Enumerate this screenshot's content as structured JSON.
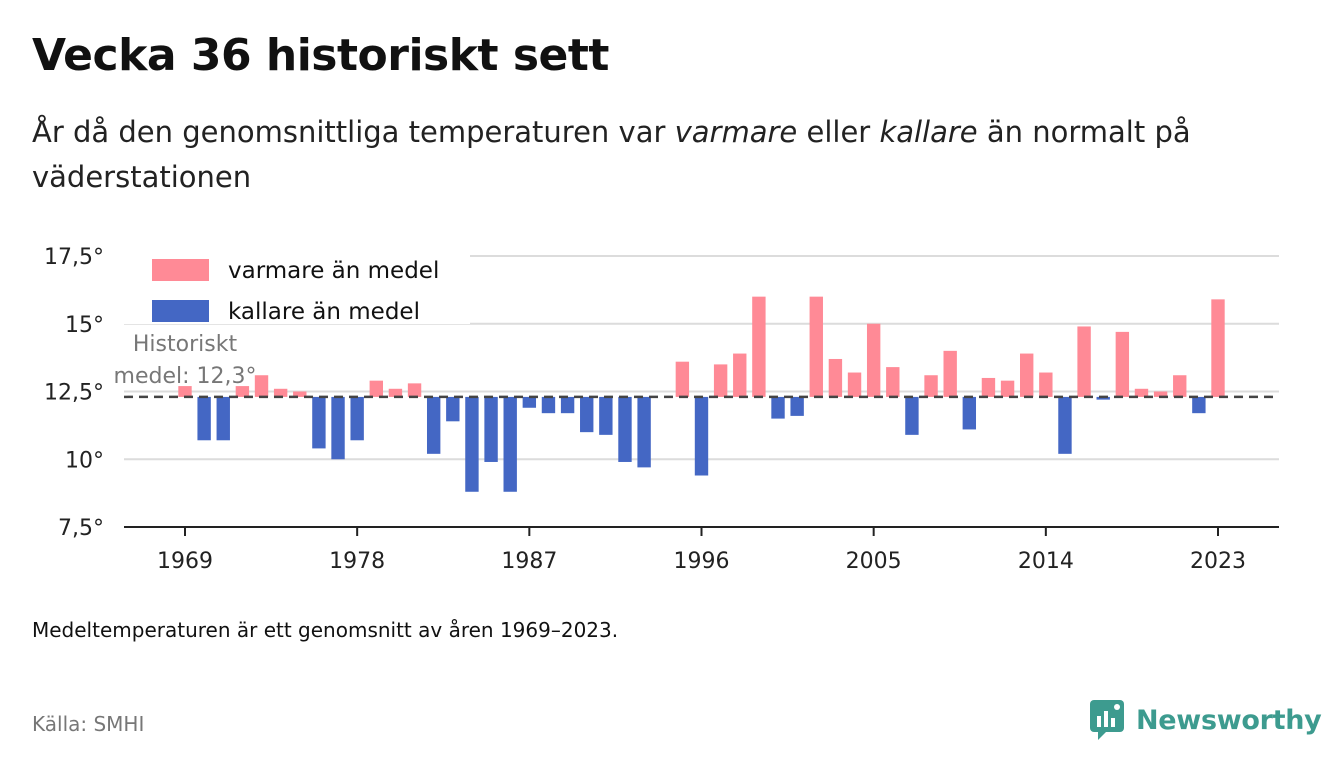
{
  "header": {
    "title": "Vecka 36 historiskt sett",
    "subtitle_parts": [
      "År då den genomsnittliga temperaturen var ",
      "varmare",
      " eller ",
      "kallare",
      " än normalt på väderstationen"
    ]
  },
  "chart_data": {
    "type": "bar",
    "title": "Vecka 36 historiskt sett",
    "x": [
      1969,
      1970,
      1971,
      1972,
      1973,
      1974,
      1975,
      1976,
      1977,
      1978,
      1979,
      1980,
      1981,
      1982,
      1983,
      1984,
      1985,
      1986,
      1987,
      1988,
      1989,
      1990,
      1991,
      1992,
      1993,
      1994,
      1995,
      1996,
      1997,
      1998,
      1999,
      2000,
      2001,
      2002,
      2003,
      2004,
      2005,
      2006,
      2007,
      2008,
      2009,
      2010,
      2011,
      2012,
      2013,
      2014,
      2015,
      2016,
      2017,
      2018,
      2019,
      2020,
      2021,
      2022,
      2023
    ],
    "values": [
      12.7,
      10.7,
      10.7,
      12.7,
      13.1,
      12.6,
      12.5,
      10.4,
      10.0,
      10.7,
      12.9,
      12.6,
      12.8,
      10.2,
      11.4,
      8.8,
      9.9,
      8.8,
      11.9,
      11.7,
      11.7,
      11.0,
      10.9,
      9.9,
      9.7,
      null,
      13.6,
      9.4,
      13.5,
      13.9,
      16.0,
      11.5,
      11.6,
      16.0,
      13.7,
      13.2,
      15.0,
      13.4,
      10.9,
      13.1,
      14.0,
      11.1,
      13.0,
      12.9,
      13.9,
      13.2,
      10.2,
      14.9,
      12.2,
      14.7,
      12.6,
      12.5,
      13.1,
      11.7,
      15.9
    ],
    "series": [
      {
        "name": "varmare än medel",
        "color": "#ff8a96"
      },
      {
        "name": "kallare än medel",
        "color": "#4467c4"
      }
    ],
    "mean": 12.3,
    "mean_label_lines": [
      "Historiskt",
      "medel: 12,3°"
    ],
    "ylim": [
      7.5,
      17.5
    ],
    "yticks": [
      7.5,
      10,
      12.5,
      15,
      17.5
    ],
    "ytick_labels": [
      "7,5°",
      "10°",
      "12,5°",
      "15°",
      "17,5°"
    ],
    "xticks": [
      1969,
      1978,
      1987,
      1996,
      2005,
      2014,
      2023
    ],
    "xtick_labels": [
      "1969",
      "1978",
      "1987",
      "1996",
      "2005",
      "2014",
      "2023"
    ],
    "grid": true,
    "legend_position": "top-left"
  },
  "footer": {
    "note": "Medeltemperaturen är ett genomsnitt av åren 1969–2023.",
    "source": "Källa: SMHI",
    "brand": "Newsworthy",
    "brand_icon": "newsworthy-logo-icon",
    "brand_color": "#3d9b8f"
  }
}
